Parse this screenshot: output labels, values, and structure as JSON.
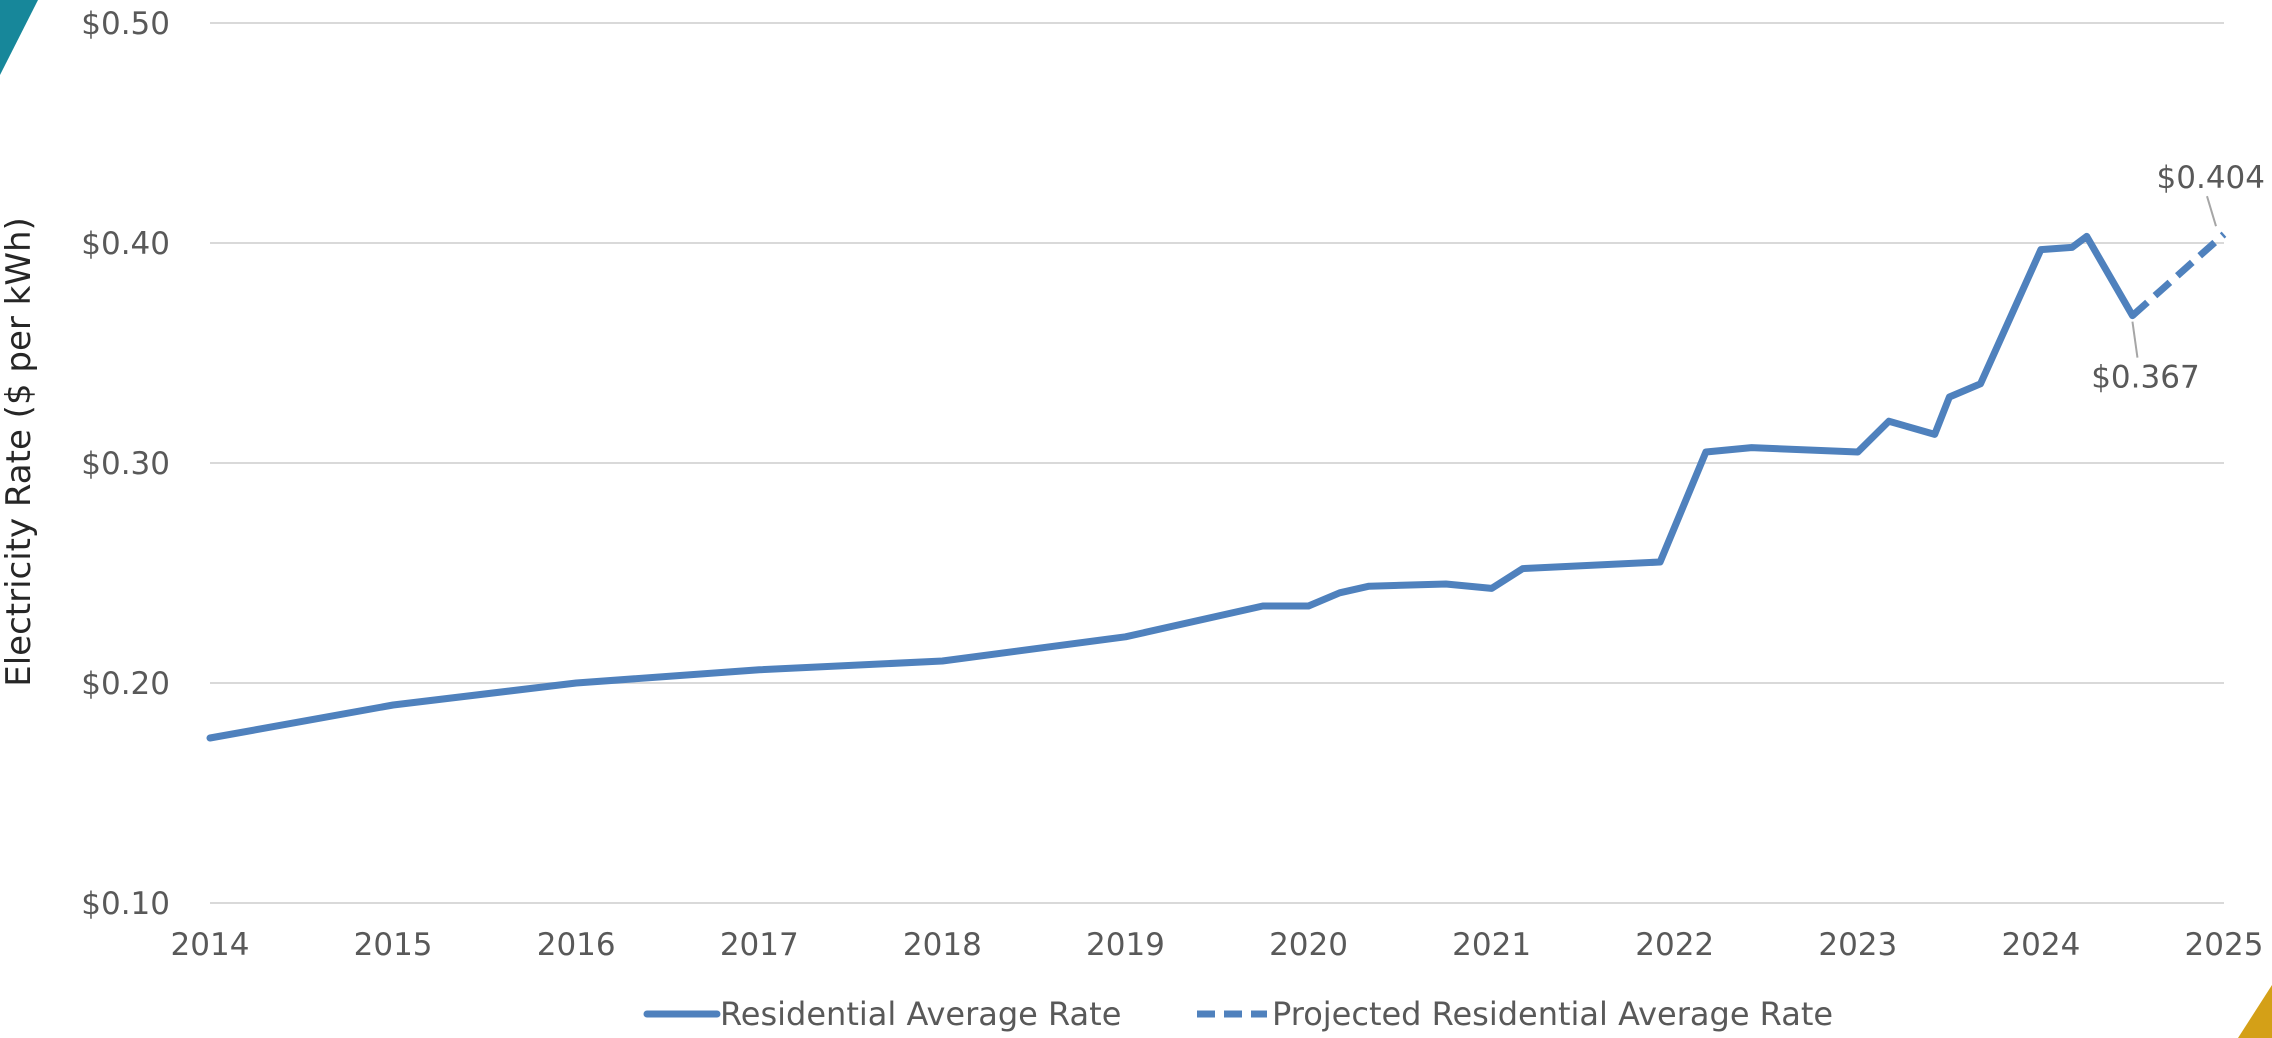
{
  "chart_data": {
    "type": "line",
    "title": "",
    "xlabel": "",
    "ylabel": "Electricity Rate ($ per kWh)",
    "xlim": [
      2014,
      2025
    ],
    "ylim": [
      0.1,
      0.5
    ],
    "y_ticks": [
      0.1,
      0.2,
      0.3,
      0.4,
      0.5
    ],
    "y_tick_labels": [
      "$0.10",
      "$0.20",
      "$0.30",
      "$0.40",
      "$0.50"
    ],
    "x_ticks": [
      2014,
      2015,
      2016,
      2017,
      2018,
      2019,
      2020,
      2021,
      2022,
      2023,
      2024,
      2025
    ],
    "x_tick_labels": [
      "2014",
      "2015",
      "2016",
      "2017",
      "2018",
      "2019",
      "2020",
      "2021",
      "2022",
      "2023",
      "2024",
      "2025"
    ],
    "grid": "horizontal",
    "legend_position": "bottom",
    "series": [
      {
        "name": "Residential Average Rate",
        "style": "solid",
        "color": "#4F81BD",
        "points": [
          [
            2014.0,
            0.175
          ],
          [
            2015.0,
            0.19
          ],
          [
            2016.0,
            0.2
          ],
          [
            2017.0,
            0.206
          ],
          [
            2018.0,
            0.21
          ],
          [
            2019.0,
            0.221
          ],
          [
            2019.75,
            0.235
          ],
          [
            2020.0,
            0.235
          ],
          [
            2020.17,
            0.241
          ],
          [
            2020.33,
            0.244
          ],
          [
            2020.75,
            0.245
          ],
          [
            2021.0,
            0.243
          ],
          [
            2021.17,
            0.252
          ],
          [
            2021.92,
            0.255
          ],
          [
            2022.17,
            0.305
          ],
          [
            2022.42,
            0.307
          ],
          [
            2023.0,
            0.305
          ],
          [
            2023.17,
            0.319
          ],
          [
            2023.42,
            0.313
          ],
          [
            2023.5,
            0.33
          ],
          [
            2023.67,
            0.336
          ],
          [
            2024.0,
            0.397
          ],
          [
            2024.17,
            0.398
          ],
          [
            2024.25,
            0.403
          ],
          [
            2024.5,
            0.367
          ]
        ]
      },
      {
        "name": "Projected Residential Average Rate",
        "style": "dashed",
        "color": "#4F81BD",
        "points": [
          [
            2024.5,
            0.367
          ],
          [
            2025.0,
            0.404
          ]
        ]
      }
    ],
    "annotations": [
      {
        "text": "$0.404",
        "x": 2025.0,
        "y": 0.404
      },
      {
        "text": "$0.367",
        "x": 2024.5,
        "y": 0.367
      }
    ]
  },
  "colors": {
    "line": "#4F81BD",
    "grid": "#D9D9D9",
    "corner_teal": "#17879A",
    "corner_gold": "#D4A017"
  }
}
